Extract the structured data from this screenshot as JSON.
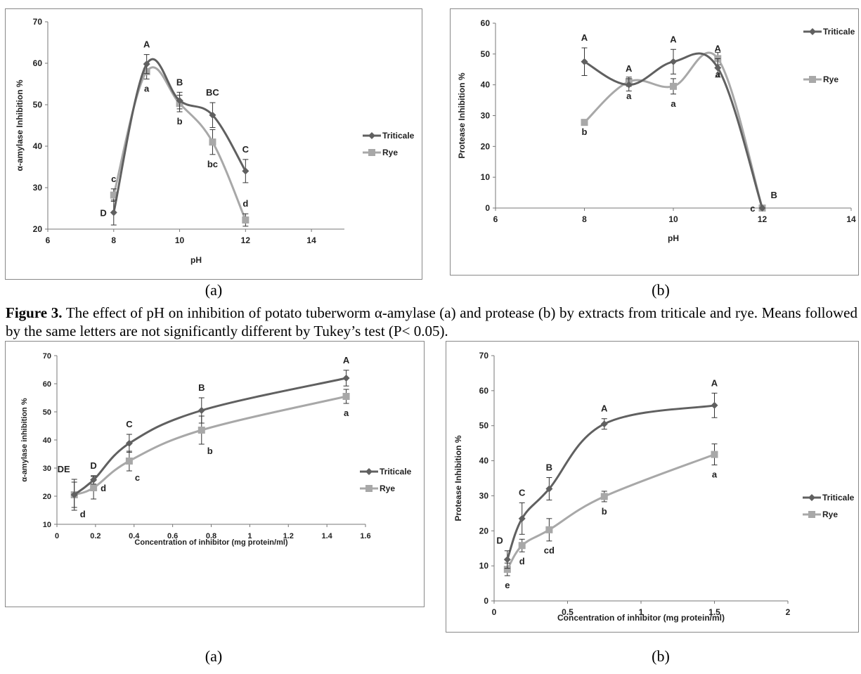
{
  "caption": {
    "lead": "Figure 3.",
    "text": " The effect of pH on inhibition of potato tuberworm α-amylase (a) and protease (b) by extracts from triticale and rye. Means followed by the same letters are not significantly different by Tukey’s test (P< 0.05)."
  },
  "chart_data": [
    {
      "type": "line",
      "panel_label": "(a)",
      "xlabel": "pH",
      "ylabel": "α-amylase Inhibition %",
      "xlim": [
        6,
        15
      ],
      "ylim": [
        20,
        70
      ],
      "xticks": [
        6,
        8,
        10,
        12,
        14
      ],
      "yticks": [
        20,
        30,
        40,
        50,
        60,
        70
      ],
      "grid": false,
      "legend_position": "right",
      "series": [
        {
          "name": "Triticale",
          "color": "#606060",
          "marker": "diamond",
          "x": [
            8,
            9,
            10,
            11,
            12
          ],
          "y": [
            24,
            59.8,
            51,
            47.5,
            34
          ],
          "err": [
            3,
            2.3,
            2,
            3,
            2.8
          ],
          "letters": [
            "D",
            "A",
            "B",
            "BC",
            "C"
          ],
          "letter_pos": [
            "left",
            "above",
            "above",
            "above",
            "above"
          ]
        },
        {
          "name": "Rye",
          "color": "#a8a8a8",
          "marker": "square",
          "x": [
            8,
            9,
            10,
            11,
            12
          ],
          "y": [
            28.2,
            58,
            50.3,
            41,
            22.2
          ],
          "err": [
            1.5,
            1.8,
            2,
            3,
            1.5
          ],
          "letters": [
            "c",
            "a",
            "b",
            "bc",
            "d"
          ],
          "letter_pos": [
            "above",
            "below",
            "below",
            "below",
            "above"
          ]
        }
      ]
    },
    {
      "type": "line",
      "panel_label": "(b)",
      "xlabel": "pH",
      "ylabel": "Protease Inhibition %",
      "xlim": [
        6,
        14
      ],
      "ylim": [
        0,
        60
      ],
      "xticks": [
        6,
        8,
        10,
        12,
        14
      ],
      "yticks": [
        0,
        10,
        20,
        30,
        40,
        50,
        60
      ],
      "grid": false,
      "legend_position": "right",
      "series": [
        {
          "name": "Triticale",
          "color": "#606060",
          "marker": "diamond",
          "x": [
            8,
            9,
            10,
            11,
            12
          ],
          "y": [
            47.5,
            40,
            47.5,
            45.5,
            0
          ],
          "err": [
            4.5,
            2,
            4,
            3,
            0
          ],
          "letters": [
            "A",
            "A",
            "A",
            "A",
            "B"
          ],
          "letter_pos": [
            "above",
            "above",
            "above",
            "above",
            "aboveright"
          ]
        },
        {
          "name": "Rye",
          "color": "#a8a8a8",
          "marker": "square",
          "x": [
            8,
            9,
            10,
            11,
            12
          ],
          "y": [
            27.8,
            41,
            39.5,
            48.5,
            0
          ],
          "err": [
            0,
            1.5,
            2.5,
            2,
            0
          ],
          "letters": [
            "b",
            "a",
            "a",
            "a",
            "c"
          ],
          "letter_pos": [
            "below",
            "below",
            "below",
            "below",
            "left"
          ]
        }
      ]
    },
    {
      "type": "line",
      "panel_label": "(a)",
      "xlabel": "Concentration of inhibitor (mg protein/ml)",
      "ylabel": "α-amylase inhibition %",
      "xlim": [
        0,
        1.6
      ],
      "ylim": [
        10,
        70
      ],
      "xticks": [
        0,
        0.2,
        0.4,
        0.6,
        0.8,
        1,
        1.2,
        1.4,
        1.6
      ],
      "yticks": [
        10,
        20,
        30,
        40,
        50,
        60,
        70
      ],
      "grid": false,
      "legend_position": "right",
      "series": [
        {
          "name": "Triticale",
          "color": "#606060",
          "marker": "diamond",
          "x": [
            0.09,
            0.19,
            0.375,
            0.75,
            1.5
          ],
          "y": [
            20.5,
            25.8,
            38.8,
            50.5,
            62
          ],
          "err": [
            5.5,
            1.5,
            3.2,
            4.5,
            2.8
          ],
          "letters": [
            "DE",
            "D",
            "C",
            "B",
            "A"
          ],
          "letter_pos": [
            "aboveleft",
            "above",
            "above",
            "above",
            "above"
          ]
        },
        {
          "name": "Rye",
          "color": "#a8a8a8",
          "marker": "square",
          "x": [
            0.09,
            0.19,
            0.375,
            0.75,
            1.5
          ],
          "y": [
            20.5,
            23,
            32.5,
            43.5,
            55.5
          ],
          "err": [
            4.5,
            4,
            3.5,
            5,
            2.5
          ],
          "letters": [
            "d",
            "d",
            "c",
            "b",
            "a"
          ],
          "letter_pos": [
            "belowright",
            "right",
            "belowright",
            "belowright",
            "below"
          ]
        }
      ]
    },
    {
      "type": "line",
      "panel_label": "(b)",
      "xlabel": "Concentration of inhibitor (mg protein/ml)",
      "ylabel": "Protease Inhibition %",
      "xlim": [
        0,
        2
      ],
      "ylim": [
        0,
        70
      ],
      "xticks": [
        0,
        0.5,
        1,
        1.5,
        2
      ],
      "yticks": [
        0,
        10,
        20,
        30,
        40,
        50,
        60,
        70
      ],
      "grid": false,
      "legend_position": "right",
      "series": [
        {
          "name": "Triticale",
          "color": "#606060",
          "marker": "diamond",
          "x": [
            0.09,
            0.19,
            0.375,
            0.75,
            1.5
          ],
          "y": [
            11.8,
            23.5,
            32,
            50.5,
            55.8
          ],
          "err": [
            2.5,
            4.5,
            3.2,
            1.5,
            3.5
          ],
          "letters": [
            "D",
            "C",
            "B",
            "A",
            "A"
          ],
          "letter_pos": [
            "aboveleft",
            "above",
            "above",
            "above",
            "above"
          ]
        },
        {
          "name": "Rye",
          "color": "#a8a8a8",
          "marker": "square",
          "x": [
            0.09,
            0.19,
            0.375,
            0.75,
            1.5
          ],
          "y": [
            9,
            15.8,
            20.3,
            29.8,
            41.8
          ],
          "err": [
            1.8,
            1.8,
            3.2,
            1.5,
            3
          ],
          "letters": [
            "e",
            "d",
            "cd",
            "b",
            "a"
          ],
          "letter_pos": [
            "below",
            "below",
            "below",
            "below",
            "below"
          ]
        }
      ]
    }
  ]
}
